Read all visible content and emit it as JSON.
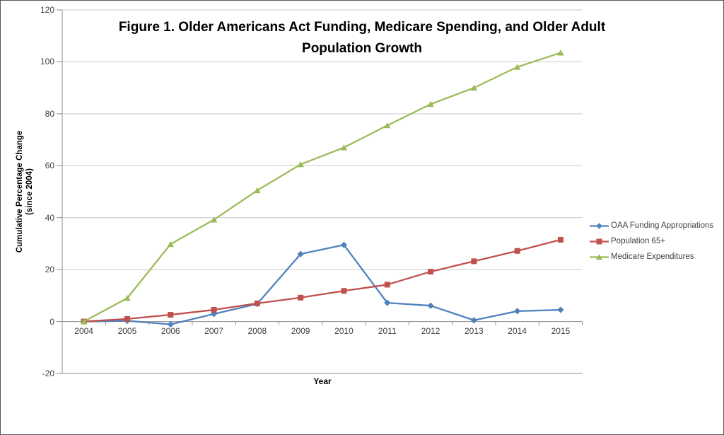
{
  "header": {
    "title_line1": "Figure 1. Older Americans Act Funding, Medicare Spending, and Older Adult",
    "title_line2": "Population Growth"
  },
  "axes": {
    "x_title": "Year",
    "y_title_line1": "Cumulative Percentage Change",
    "y_title_line2": "(since 2004)"
  },
  "chart_data": {
    "type": "line",
    "title": "Figure 1. Older Americans Act Funding, Medicare Spending, and Older Adult Population Growth",
    "xlabel": "Year",
    "ylabel": "Cumulative Percentage Change (since 2004)",
    "categories": [
      2004,
      2005,
      2006,
      2007,
      2008,
      2009,
      2010,
      2011,
      2012,
      2013,
      2014,
      2015
    ],
    "ylim": [
      -20,
      120
    ],
    "ytick_interval": 20,
    "grid": true,
    "legend_position": "right",
    "series": [
      {
        "name": "OAA Funding Appropriations",
        "color": "#4F81BD",
        "marker": "diamond",
        "values": [
          0,
          0.3,
          -1.1,
          2.9,
          6.8,
          26.0,
          29.5,
          7.2,
          6.1,
          0.5,
          4.0,
          4.5
        ]
      },
      {
        "name": "Population 65+",
        "color": "#C0504D",
        "marker": "square",
        "values": [
          0,
          1.0,
          2.6,
          4.5,
          7.0,
          9.2,
          11.8,
          14.2,
          19.2,
          23.2,
          27.2,
          31.5
        ]
      },
      {
        "name": "Medicare Expenditures",
        "color": "#9BBB59",
        "marker": "triangle",
        "values": [
          0,
          9.0,
          29.8,
          39.2,
          50.5,
          60.5,
          67.0,
          75.5,
          83.7,
          90.0,
          98.0,
          103.5
        ]
      }
    ]
  },
  "style": {
    "axis_color": "#8C8C8C",
    "grid_color": "#C9C9C9",
    "tick_text_color": "#3F3F3F",
    "title_color": "#000000",
    "frame_border_color": "#595959",
    "background": "#FFFFFF"
  }
}
